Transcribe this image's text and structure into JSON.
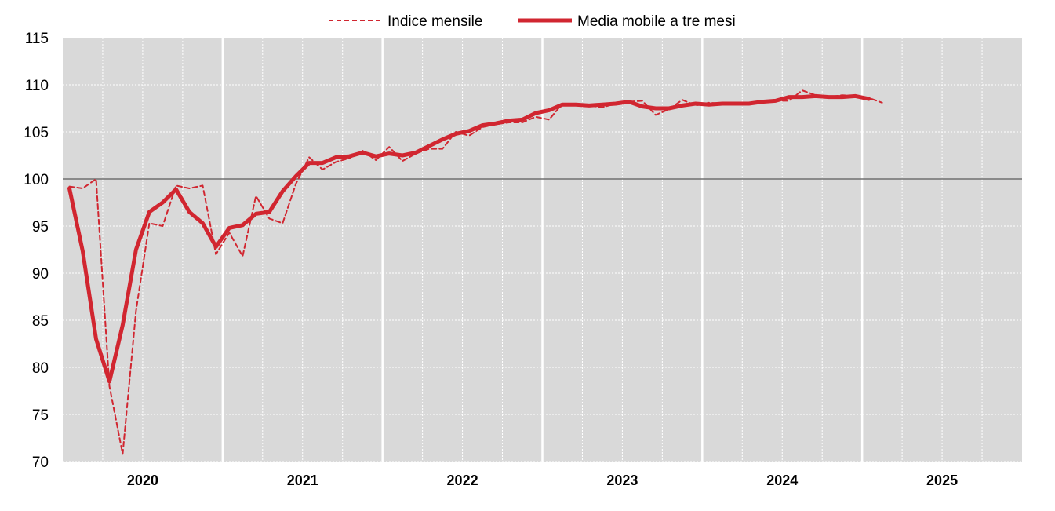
{
  "chart_data": {
    "type": "line",
    "title": "",
    "xlabel": "",
    "ylabel": "",
    "ylim": [
      70,
      115
    ],
    "yticks": [
      70,
      75,
      80,
      85,
      90,
      95,
      100,
      105,
      110,
      115
    ],
    "reference_line": 100,
    "grid": true,
    "legend_position": "top-center",
    "year_labels": [
      "2020",
      "2021",
      "2022",
      "2023",
      "2024",
      "2025"
    ],
    "x_start": "2020-01",
    "series": [
      {
        "name": "Indice mensile",
        "style": "dashed",
        "color": "#d12630",
        "values": [
          99.2,
          99.0,
          100.0,
          78.0,
          70.8,
          86.0,
          95.3,
          95.0,
          99.3,
          99.0,
          99.3,
          92.0,
          94.3,
          91.8,
          98.2,
          95.8,
          95.3,
          99.5,
          102.3,
          101.0,
          101.8,
          102.2,
          103.0,
          102.0,
          103.4,
          101.9,
          102.7,
          103.2,
          103.2,
          105.0,
          104.6,
          105.5,
          105.8,
          106.0,
          106.0,
          106.6,
          106.3,
          108.0,
          107.9,
          107.8,
          107.6,
          108.0,
          108.2,
          108.3,
          106.8,
          107.4,
          108.4,
          107.8,
          108.1,
          108.0,
          108.0,
          108.1,
          108.3,
          108.3,
          108.3,
          109.4,
          108.9,
          108.7,
          108.9,
          108.8,
          108.6,
          108.1
        ]
      },
      {
        "name": "Media mobile a tre mesi",
        "style": "solid",
        "color": "#d12630",
        "values": [
          99.0,
          92.3,
          83.0,
          78.5,
          84.5,
          92.5,
          96.5,
          97.5,
          98.9,
          96.5,
          95.3,
          92.8,
          94.8,
          95.1,
          96.3,
          96.5,
          98.7,
          100.3,
          101.7,
          101.7,
          102.3,
          102.4,
          102.8,
          102.4,
          102.7,
          102.5,
          102.8,
          103.5,
          104.2,
          104.8,
          105.1,
          105.7,
          105.9,
          106.2,
          106.3,
          107.0,
          107.3,
          107.9,
          107.9,
          107.8,
          107.9,
          108.0,
          108.2,
          107.7,
          107.5,
          107.5,
          107.8,
          108.0,
          107.9,
          108.0,
          108.0,
          108.0,
          108.2,
          108.3,
          108.7,
          108.7,
          108.8,
          108.7,
          108.7,
          108.8,
          108.5
        ]
      }
    ]
  }
}
